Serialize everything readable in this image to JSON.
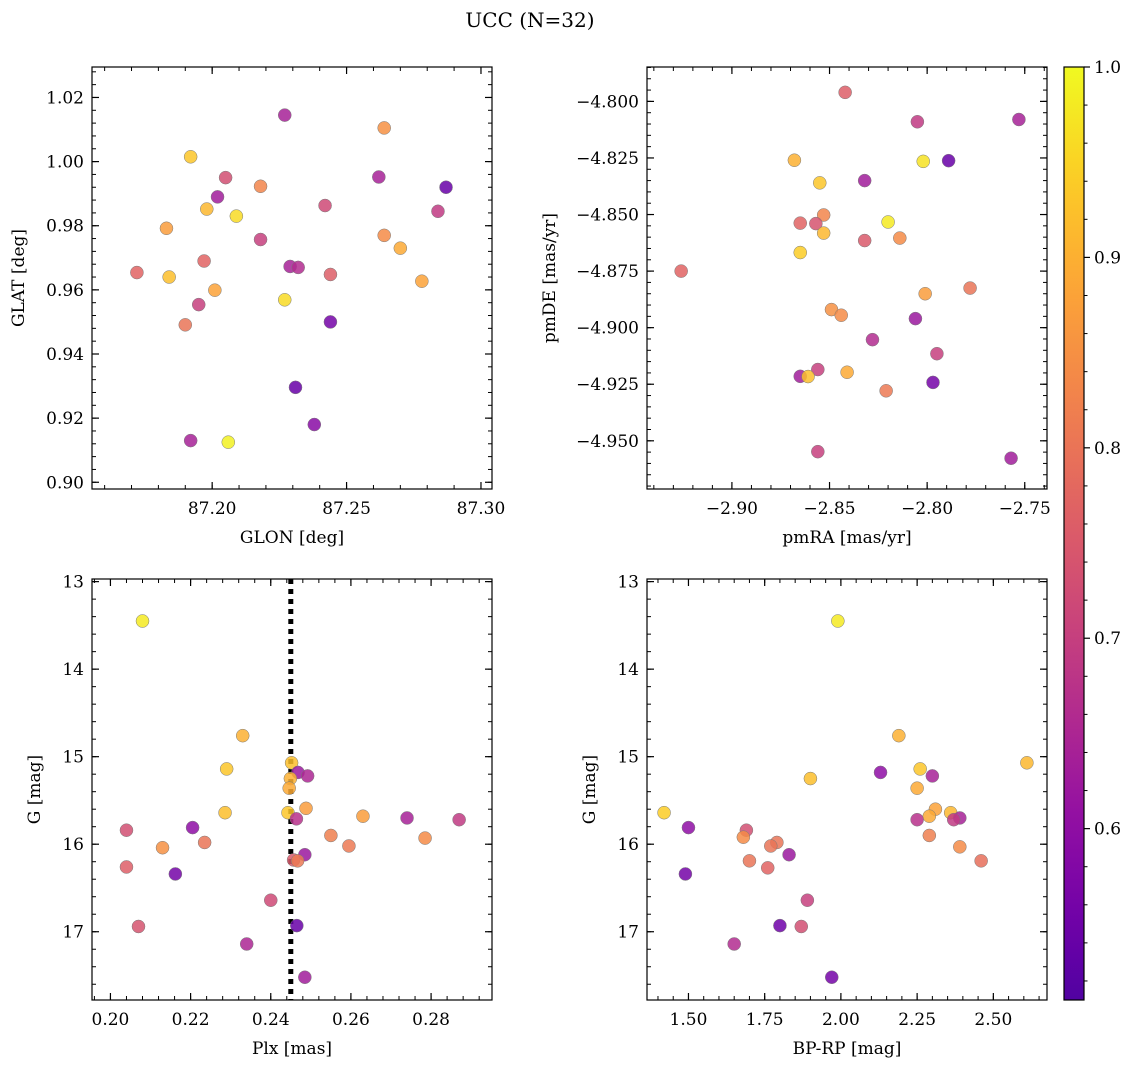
{
  "figure": {
    "title": "UCC (N=32)"
  },
  "colorbar": {
    "vmin": 0.51,
    "vmax": 1.0,
    "ticks": [
      0.6,
      0.7,
      0.8,
      0.9,
      1.0
    ],
    "tick_labels": [
      "0.6",
      "0.7",
      "0.8",
      "0.9",
      "1.0"
    ],
    "colormap": "plasma"
  },
  "chart_data": [
    {
      "id": "tl",
      "type": "scatter",
      "xlabel": "GLON [deg]",
      "ylabel": "GLAT [deg]",
      "xlim": [
        87.1553,
        87.3041
      ],
      "ylim": [
        0.8979,
        1.0295
      ],
      "xticks": [
        87.2,
        87.25,
        87.3
      ],
      "xtick_labels": [
        "87.20",
        "87.25",
        "87.30"
      ],
      "yticks": [
        0.9,
        0.92,
        0.94,
        0.96,
        0.98,
        1.0,
        1.02
      ],
      "ytick_labels": [
        "0.90",
        "0.92",
        "0.94",
        "0.96",
        "0.98",
        "1.00",
        "1.02"
      ],
      "points": [
        {
          "x": 87.227,
          "y": 1.0145,
          "c": 0.64
        },
        {
          "x": 87.264,
          "y": 1.0105,
          "c": 0.85
        },
        {
          "x": 87.192,
          "y": 1.0015,
          "c": 0.93
        },
        {
          "x": 87.205,
          "y": 0.995,
          "c": 0.73
        },
        {
          "x": 87.262,
          "y": 0.9952,
          "c": 0.64
        },
        {
          "x": 87.287,
          "y": 0.992,
          "c": 0.54
        },
        {
          "x": 87.218,
          "y": 0.9923,
          "c": 0.83
        },
        {
          "x": 87.202,
          "y": 0.989,
          "c": 0.63
        },
        {
          "x": 87.242,
          "y": 0.9863,
          "c": 0.72
        },
        {
          "x": 87.198,
          "y": 0.9852,
          "c": 0.91
        },
        {
          "x": 87.284,
          "y": 0.9845,
          "c": 0.69
        },
        {
          "x": 87.209,
          "y": 0.983,
          "c": 0.96
        },
        {
          "x": 87.183,
          "y": 0.9792,
          "c": 0.87
        },
        {
          "x": 87.264,
          "y": 0.977,
          "c": 0.84
        },
        {
          "x": 87.218,
          "y": 0.9757,
          "c": 0.7
        },
        {
          "x": 87.27,
          "y": 0.973,
          "c": 0.89
        },
        {
          "x": 87.197,
          "y": 0.969,
          "c": 0.77
        },
        {
          "x": 87.229,
          "y": 0.9673,
          "c": 0.64
        },
        {
          "x": 87.232,
          "y": 0.967,
          "c": 0.66
        },
        {
          "x": 87.172,
          "y": 0.9654,
          "c": 0.77
        },
        {
          "x": 87.244,
          "y": 0.9648,
          "c": 0.76
        },
        {
          "x": 87.184,
          "y": 0.964,
          "c": 0.92
        },
        {
          "x": 87.278,
          "y": 0.9627,
          "c": 0.88
        },
        {
          "x": 87.201,
          "y": 0.9599,
          "c": 0.88
        },
        {
          "x": 87.227,
          "y": 0.9569,
          "c": 0.96
        },
        {
          "x": 87.195,
          "y": 0.9554,
          "c": 0.7
        },
        {
          "x": 87.244,
          "y": 0.95,
          "c": 0.56
        },
        {
          "x": 87.19,
          "y": 0.9491,
          "c": 0.8
        },
        {
          "x": 87.231,
          "y": 0.9296,
          "c": 0.54
        },
        {
          "x": 87.238,
          "y": 0.918,
          "c": 0.59
        },
        {
          "x": 87.192,
          "y": 0.913,
          "c": 0.64
        },
        {
          "x": 87.206,
          "y": 0.9125,
          "c": 0.99
        }
      ]
    },
    {
      "id": "tr",
      "type": "scatter",
      "xlabel": "pmRA [mas/yr]",
      "ylabel": "pmDE [mas/yr]",
      "xlim": [
        -2.9435,
        -2.7386
      ],
      "ylim": [
        -4.9713,
        -4.7848
      ],
      "xticks": [
        -2.9,
        -2.85,
        -2.8,
        -2.75
      ],
      "xtick_labels": [
        "−2.90",
        "−2.85",
        "−2.80",
        "−2.75"
      ],
      "yticks": [
        -4.95,
        -4.925,
        -4.9,
        -4.875,
        -4.85,
        -4.825,
        -4.8
      ],
      "ytick_labels": [
        "−4.950",
        "−4.925",
        "−4.900",
        "−4.875",
        "−4.850",
        "−4.825",
        "−4.800"
      ],
      "points": [
        {
          "x": -2.842,
          "y": -4.796,
          "c": 0.76
        },
        {
          "x": -2.805,
          "y": -4.809,
          "c": 0.69
        },
        {
          "x": -2.753,
          "y": -4.808,
          "c": 0.64
        },
        {
          "x": -2.868,
          "y": -4.826,
          "c": 0.9
        },
        {
          "x": -2.802,
          "y": -4.8265,
          "c": 0.97
        },
        {
          "x": -2.789,
          "y": -4.8262,
          "c": 0.54
        },
        {
          "x": -2.855,
          "y": -4.836,
          "c": 0.93
        },
        {
          "x": -2.832,
          "y": -4.835,
          "c": 0.63
        },
        {
          "x": -2.853,
          "y": -4.8502,
          "c": 0.83
        },
        {
          "x": -2.82,
          "y": -4.8533,
          "c": 0.98
        },
        {
          "x": -2.865,
          "y": -4.8538,
          "c": 0.77
        },
        {
          "x": -2.857,
          "y": -4.854,
          "c": 0.74
        },
        {
          "x": -2.853,
          "y": -4.8582,
          "c": 0.91
        },
        {
          "x": -2.814,
          "y": -4.8604,
          "c": 0.84
        },
        {
          "x": -2.832,
          "y": -4.8615,
          "c": 0.75
        },
        {
          "x": -2.865,
          "y": -4.8668,
          "c": 0.94
        },
        {
          "x": -2.926,
          "y": -4.875,
          "c": 0.77
        },
        {
          "x": -2.778,
          "y": -4.8825,
          "c": 0.8
        },
        {
          "x": -2.801,
          "y": -4.885,
          "c": 0.87
        },
        {
          "x": -2.849,
          "y": -4.892,
          "c": 0.85
        },
        {
          "x": -2.844,
          "y": -4.8945,
          "c": 0.84
        },
        {
          "x": -2.806,
          "y": -4.896,
          "c": 0.62
        },
        {
          "x": -2.828,
          "y": -4.9053,
          "c": 0.66
        },
        {
          "x": -2.795,
          "y": -4.9115,
          "c": 0.7
        },
        {
          "x": -2.856,
          "y": -4.9185,
          "c": 0.7
        },
        {
          "x": -2.841,
          "y": -4.9197,
          "c": 0.89
        },
        {
          "x": -2.865,
          "y": -4.9215,
          "c": 0.63
        },
        {
          "x": -2.861,
          "y": -4.9216,
          "c": 0.92
        },
        {
          "x": -2.797,
          "y": -4.9242,
          "c": 0.56
        },
        {
          "x": -2.821,
          "y": -4.9279,
          "c": 0.81
        },
        {
          "x": -2.856,
          "y": -4.9548,
          "c": 0.7
        },
        {
          "x": -2.757,
          "y": -4.9577,
          "c": 0.63
        }
      ]
    },
    {
      "id": "bl",
      "type": "scatter",
      "xlabel": "Plx [mas]",
      "ylabel": "G [mag]",
      "xlim": [
        0.1954,
        0.2952
      ],
      "ylim": [
        17.78,
        12.97
      ],
      "xticks": [
        0.2,
        0.22,
        0.24,
        0.26,
        0.28
      ],
      "xtick_labels": [
        "0.20",
        "0.22",
        "0.24",
        "0.26",
        "0.28"
      ],
      "yticks": [
        13,
        14,
        15,
        16,
        17
      ],
      "ytick_labels": [
        "13",
        "14",
        "15",
        "16",
        "17"
      ],
      "vline_x": 0.245,
      "points": [
        {
          "x": 0.208,
          "y": 13.45,
          "c": 0.98
        },
        {
          "x": 0.233,
          "y": 14.76,
          "c": 0.9
        },
        {
          "x": 0.2452,
          "y": 15.07,
          "c": 0.92
        },
        {
          "x": 0.229,
          "y": 15.14,
          "c": 0.93
        },
        {
          "x": 0.2468,
          "y": 15.18,
          "c": 0.62
        },
        {
          "x": 0.2492,
          "y": 15.22,
          "c": 0.65
        },
        {
          "x": 0.2449,
          "y": 15.25,
          "c": 0.9
        },
        {
          "x": 0.2446,
          "y": 15.36,
          "c": 0.89
        },
        {
          "x": 0.2488,
          "y": 15.59,
          "c": 0.87
        },
        {
          "x": 0.2286,
          "y": 15.64,
          "c": 0.92
        },
        {
          "x": 0.2443,
          "y": 15.64,
          "c": 0.93
        },
        {
          "x": 0.263,
          "y": 15.68,
          "c": 0.87
        },
        {
          "x": 0.274,
          "y": 15.7,
          "c": 0.64
        },
        {
          "x": 0.2464,
          "y": 15.71,
          "c": 0.67
        },
        {
          "x": 0.287,
          "y": 15.72,
          "c": 0.69
        },
        {
          "x": 0.2205,
          "y": 15.81,
          "c": 0.6
        },
        {
          "x": 0.204,
          "y": 15.84,
          "c": 0.73
        },
        {
          "x": 0.255,
          "y": 15.9,
          "c": 0.82
        },
        {
          "x": 0.2785,
          "y": 15.93,
          "c": 0.84
        },
        {
          "x": 0.2235,
          "y": 15.98,
          "c": 0.8
        },
        {
          "x": 0.2595,
          "y": 16.02,
          "c": 0.81
        },
        {
          "x": 0.213,
          "y": 16.04,
          "c": 0.85
        },
        {
          "x": 0.2485,
          "y": 16.12,
          "c": 0.62
        },
        {
          "x": 0.2457,
          "y": 16.18,
          "c": 0.75
        },
        {
          "x": 0.2467,
          "y": 16.19,
          "c": 0.81
        },
        {
          "x": 0.204,
          "y": 16.26,
          "c": 0.76
        },
        {
          "x": 0.2162,
          "y": 16.34,
          "c": 0.56
        },
        {
          "x": 0.24,
          "y": 16.64,
          "c": 0.72
        },
        {
          "x": 0.207,
          "y": 16.94,
          "c": 0.74
        },
        {
          "x": 0.2465,
          "y": 16.93,
          "c": 0.54
        },
        {
          "x": 0.234,
          "y": 17.14,
          "c": 0.65
        },
        {
          "x": 0.2485,
          "y": 17.52,
          "c": 0.63
        }
      ]
    },
    {
      "id": "br",
      "type": "scatter",
      "xlabel": "BP-RP [mag]",
      "ylabel": "G [mag]",
      "xlim": [
        1.364,
        2.676
      ],
      "ylim": [
        17.78,
        12.97
      ],
      "xticks": [
        1.5,
        1.75,
        2.0,
        2.25,
        2.5
      ],
      "xtick_labels": [
        "1.50",
        "1.75",
        "2.00",
        "2.25",
        "2.50"
      ],
      "yticks": [
        13,
        14,
        15,
        16,
        17
      ],
      "ytick_labels": [
        "13",
        "14",
        "15",
        "16",
        "17"
      ],
      "points": [
        {
          "x": 1.99,
          "y": 13.45,
          "c": 0.98
        },
        {
          "x": 2.19,
          "y": 14.76,
          "c": 0.9
        },
        {
          "x": 2.61,
          "y": 15.07,
          "c": 0.91
        },
        {
          "x": 2.26,
          "y": 15.14,
          "c": 0.93
        },
        {
          "x": 2.13,
          "y": 15.18,
          "c": 0.6
        },
        {
          "x": 2.3,
          "y": 15.22,
          "c": 0.64
        },
        {
          "x": 1.9,
          "y": 15.25,
          "c": 0.92
        },
        {
          "x": 2.25,
          "y": 15.36,
          "c": 0.89
        },
        {
          "x": 2.31,
          "y": 15.6,
          "c": 0.88
        },
        {
          "x": 1.42,
          "y": 15.64,
          "c": 0.94
        },
        {
          "x": 2.36,
          "y": 15.64,
          "c": 0.91
        },
        {
          "x": 2.29,
          "y": 15.68,
          "c": 0.89
        },
        {
          "x": 2.39,
          "y": 15.7,
          "c": 0.64
        },
        {
          "x": 2.25,
          "y": 15.72,
          "c": 0.67
        },
        {
          "x": 2.37,
          "y": 15.72,
          "c": 0.69
        },
        {
          "x": 1.5,
          "y": 15.81,
          "c": 0.6
        },
        {
          "x": 1.69,
          "y": 15.84,
          "c": 0.73
        },
        {
          "x": 2.29,
          "y": 15.9,
          "c": 0.82
        },
        {
          "x": 1.68,
          "y": 15.92,
          "c": 0.84
        },
        {
          "x": 1.79,
          "y": 15.98,
          "c": 0.8
        },
        {
          "x": 1.77,
          "y": 16.02,
          "c": 0.8
        },
        {
          "x": 2.39,
          "y": 16.03,
          "c": 0.84
        },
        {
          "x": 1.83,
          "y": 16.12,
          "c": 0.62
        },
        {
          "x": 1.7,
          "y": 16.19,
          "c": 0.8
        },
        {
          "x": 2.46,
          "y": 16.19,
          "c": 0.79
        },
        {
          "x": 1.76,
          "y": 16.27,
          "c": 0.77
        },
        {
          "x": 1.49,
          "y": 16.34,
          "c": 0.56
        },
        {
          "x": 1.89,
          "y": 16.64,
          "c": 0.7
        },
        {
          "x": 1.8,
          "y": 16.93,
          "c": 0.55
        },
        {
          "x": 1.87,
          "y": 16.94,
          "c": 0.73
        },
        {
          "x": 1.65,
          "y": 17.14,
          "c": 0.66
        },
        {
          "x": 1.97,
          "y": 17.52,
          "c": 0.56
        }
      ]
    }
  ]
}
